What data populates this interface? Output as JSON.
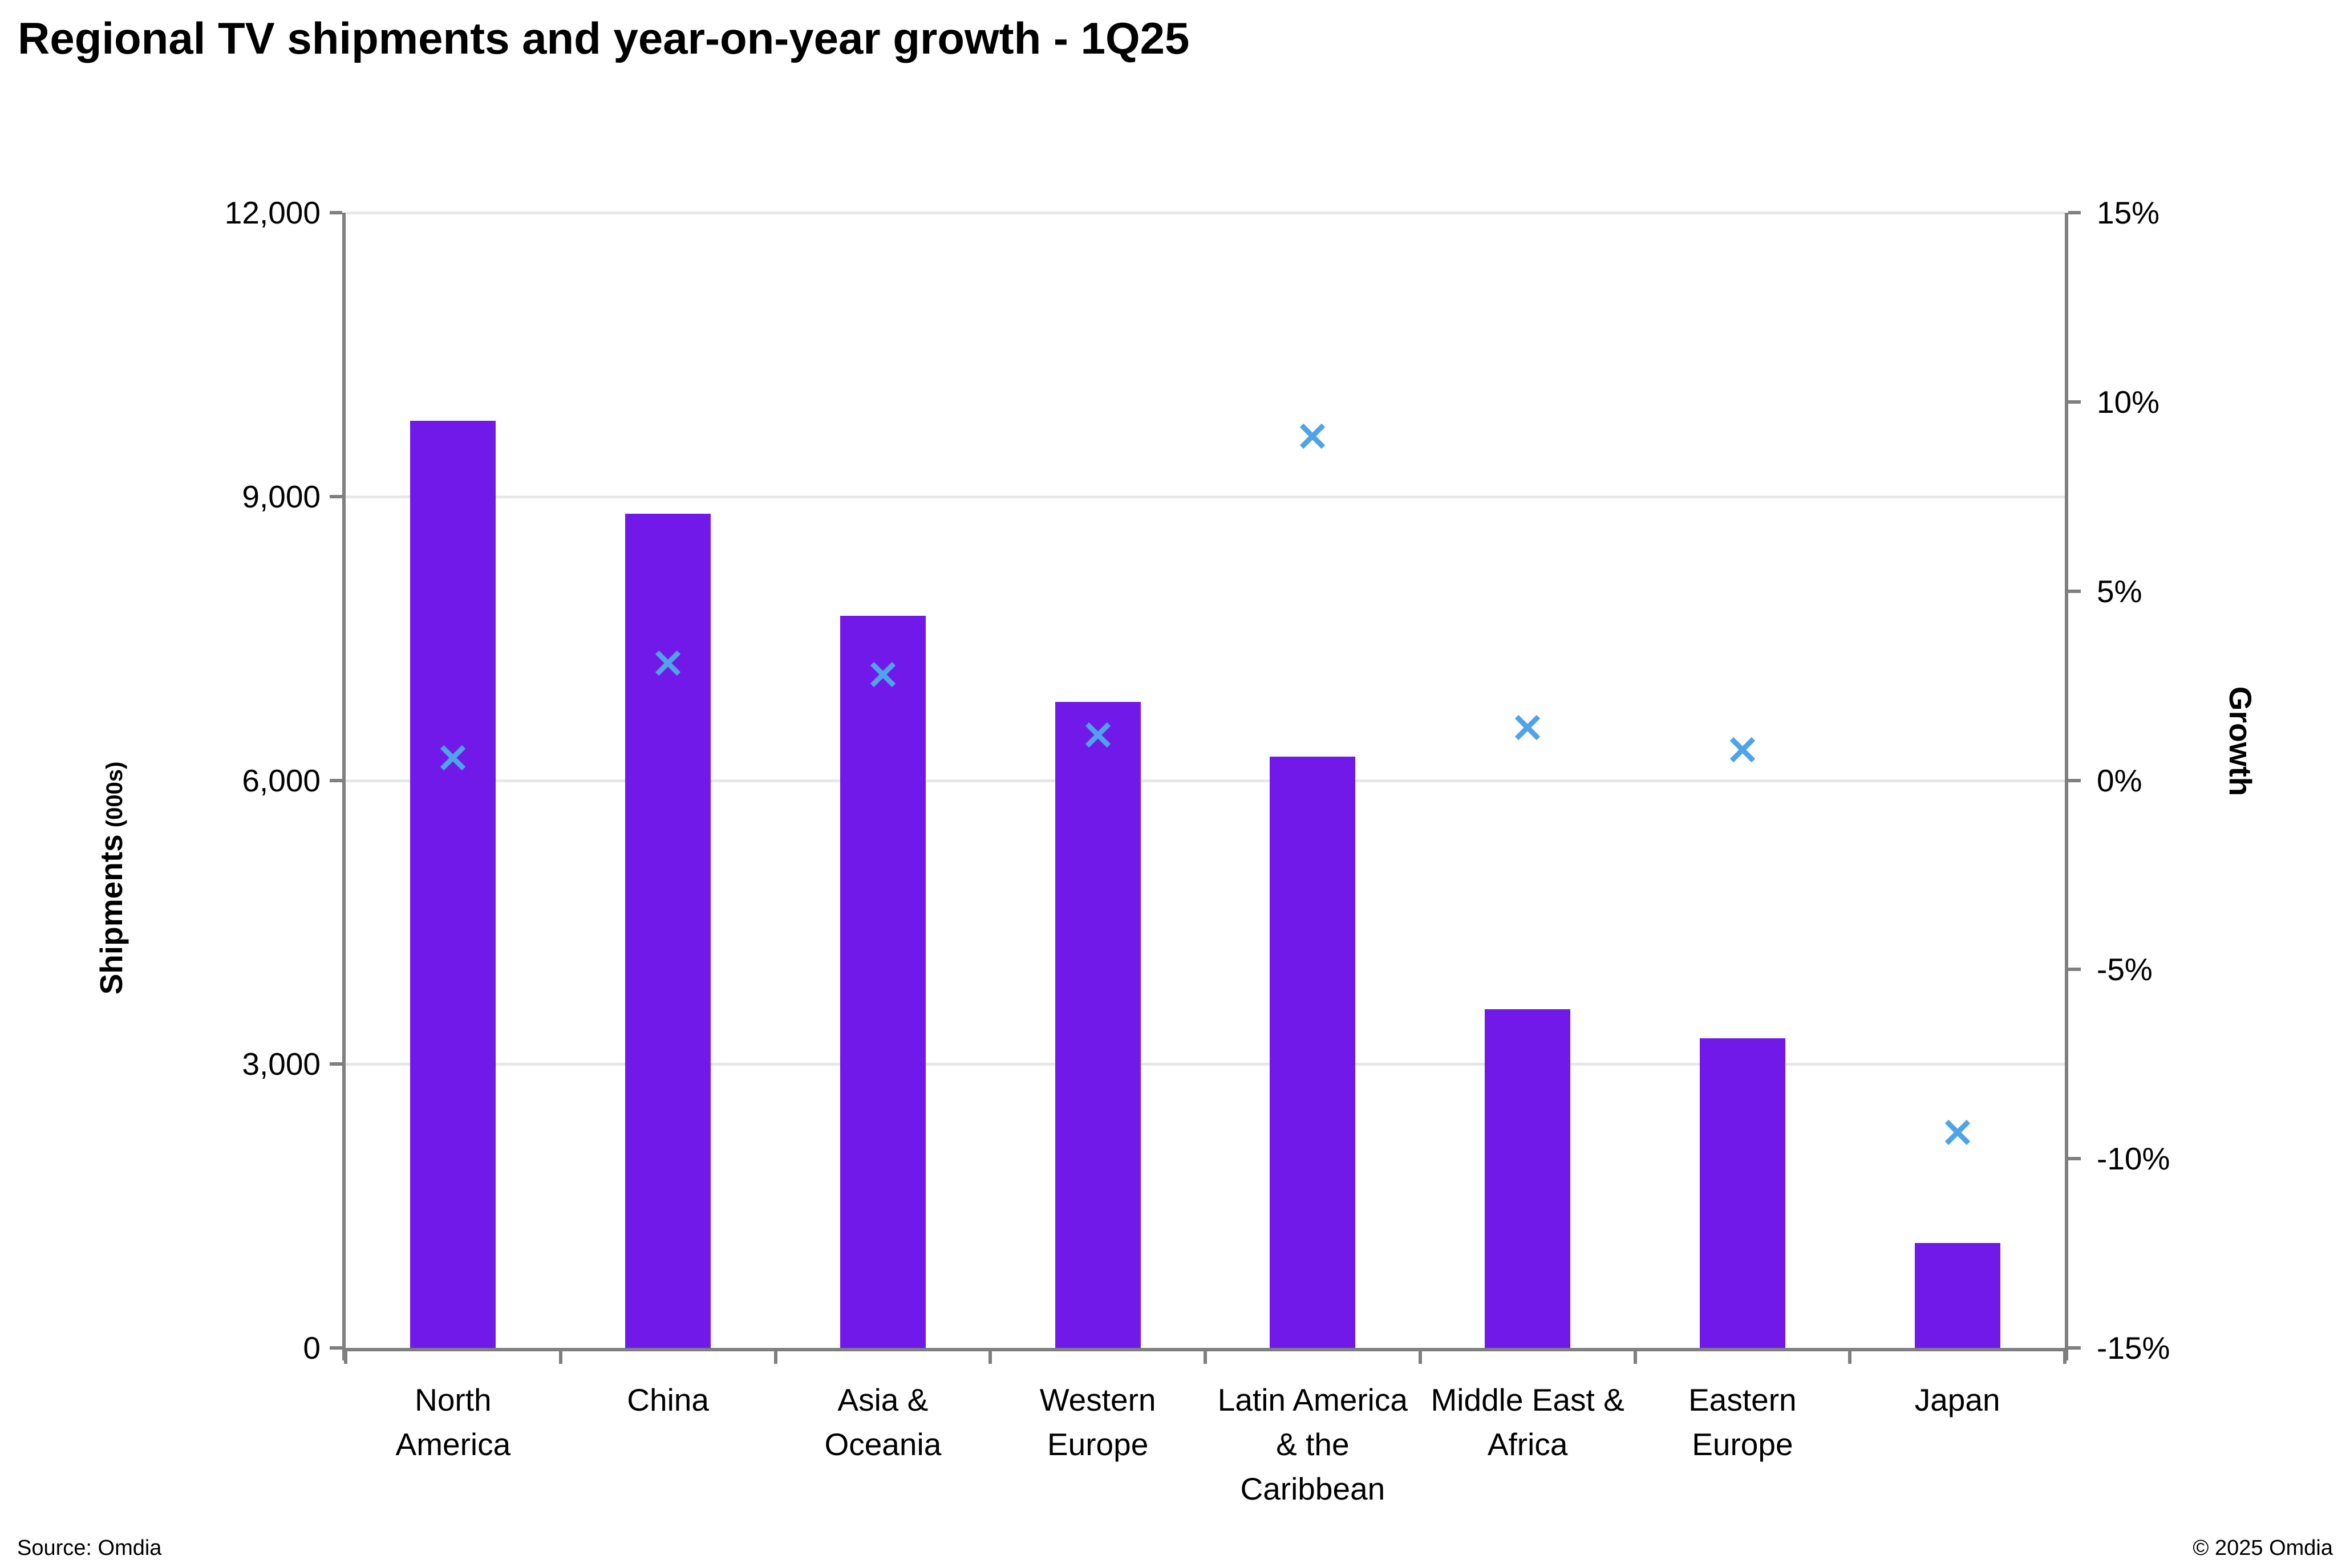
{
  "footer": {
    "source": "Source: Omdia",
    "copyright": "© 2025 Omdia"
  },
  "chart_data": {
    "type": "combo",
    "title": "Regional TV shipments and year-on-year growth - 1Q25",
    "categories": [
      [
        "North",
        "America"
      ],
      [
        "China"
      ],
      [
        "Asia &",
        "Oceania"
      ],
      [
        "Western",
        "Europe"
      ],
      [
        "Latin America",
        "& the",
        "Caribbean"
      ],
      [
        "Middle East &",
        "Africa"
      ],
      [
        "Eastern",
        "Europe"
      ],
      [
        "Japan"
      ]
    ],
    "series": [
      {
        "name": "Shipments (000s)",
        "type": "bar",
        "axis": "left",
        "color": "#7119e9",
        "values": [
          9800,
          8820,
          7740,
          6830,
          6250,
          3580,
          3270,
          1110
        ]
      },
      {
        "name": "Growth",
        "type": "scatter",
        "marker": "x",
        "axis": "right",
        "color": "#4fa3e8",
        "values": [
          0.6,
          3.1,
          2.8,
          1.2,
          9.1,
          1.4,
          0.8,
          -9.3
        ]
      }
    ],
    "left_axis": {
      "title": "Shipments",
      "title_suffix": "(000s)",
      "min": 0,
      "max": 12000,
      "tick_values": [
        12000,
        9000,
        6000,
        3000,
        0
      ],
      "tick_labels": [
        "12,000",
        "9,000",
        "6,000",
        "3,000",
        "0"
      ]
    },
    "right_axis": {
      "title": "Growth",
      "min": -15,
      "max": 15,
      "tick_values": [
        15,
        10,
        5,
        0,
        -5,
        -10,
        -15
      ],
      "tick_labels": [
        "15%",
        "10%",
        "5%",
        "0%",
        "-5%",
        "-10%",
        "-15%"
      ]
    },
    "grid": true,
    "legend": "none",
    "colors": {
      "bar": "#7119e9",
      "marker": "#4fa3e8",
      "gridline": "#e7e7e7",
      "axisline": "#7f7f7f"
    }
  }
}
